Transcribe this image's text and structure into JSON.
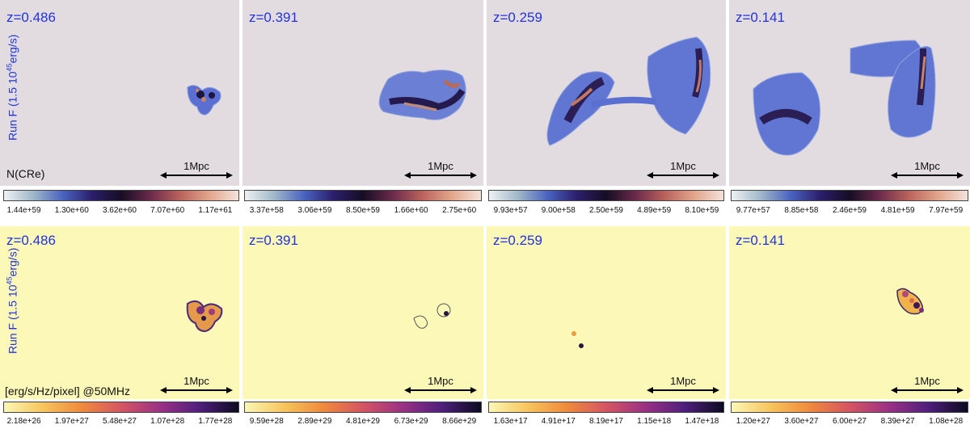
{
  "run_label": "Run F (1.5 10",
  "run_label_exp": "45",
  "run_label_tail": "erg/s)",
  "row1": {
    "quantity_label": "N(CRe)",
    "panels": [
      {
        "z": "z=0.486",
        "scale": "1Mpc",
        "ticks": [
          "1.44e+59",
          "1.30e+60",
          "3.62e+60",
          "7.07e+60",
          "1.17e+61"
        ]
      },
      {
        "z": "z=0.391",
        "scale": "1Mpc",
        "ticks": [
          "3.37e+58",
          "3.06e+59",
          "8.50e+59",
          "1.66e+60",
          "2.75e+60"
        ]
      },
      {
        "z": "z=0.259",
        "scale": "1Mpc",
        "ticks": [
          "9.93e+57",
          "9.00e+58",
          "2.50e+59",
          "4.89e+59",
          "8.10e+59"
        ]
      },
      {
        "z": "z=0.141",
        "scale": "1Mpc",
        "ticks": [
          "9.77e+57",
          "8.85e+58",
          "2.46e+59",
          "4.81e+59",
          "7.97e+59"
        ]
      }
    ]
  },
  "row2": {
    "quantity_label": "[erg/s/Hz/pixel] @50MHz",
    "panels": [
      {
        "z": "z=0.486",
        "scale": "1Mpc",
        "ticks": [
          "2.18e+26",
          "1.97e+27",
          "5.48e+27",
          "1.07e+28",
          "1.77e+28"
        ]
      },
      {
        "z": "z=0.391",
        "scale": "1Mpc",
        "ticks": [
          "9.59e+28",
          "2.89e+29",
          "4.81e+29",
          "6.73e+29",
          "8.66e+29"
        ]
      },
      {
        "z": "z=0.259",
        "scale": "1Mpc",
        "ticks": [
          "1.63e+17",
          "4.91e+17",
          "8.19e+17",
          "1.15e+18",
          "1.47e+18"
        ]
      },
      {
        "z": "z=0.141",
        "scale": "1Mpc",
        "ticks": [
          "1.20e+27",
          "3.60e+27",
          "6.00e+27",
          "8.39e+27",
          "1.08e+28"
        ]
      }
    ]
  },
  "colors": {
    "label_blue": "#2233dd",
    "ncre_bg": "#e2dce1",
    "radio_bg": "#fbf8b8"
  }
}
